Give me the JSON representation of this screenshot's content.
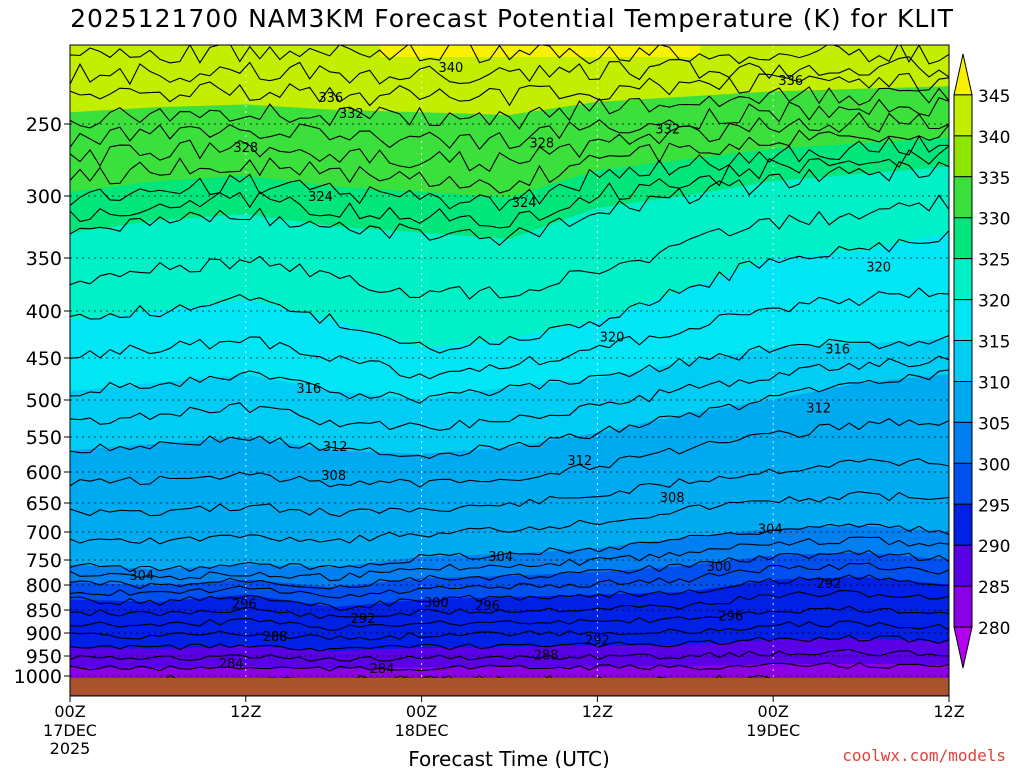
{
  "title": "2025121700 NAM3KM Forecast Potential Temperature (K) for KLIT",
  "credit": "coolwx.com/models",
  "chart_data": {
    "type": "contour",
    "title": "2025121700 NAM3KM Forecast Potential Temperature (K) for KLIT",
    "xlabel": "Forecast Time (UTC)",
    "ylabel": "",
    "x_ticks": [
      {
        "hour": 0,
        "label": "00Z",
        "sub1": "17DEC",
        "sub2": "2025"
      },
      {
        "hour": 12,
        "label": "12Z",
        "sub1": "",
        "sub2": ""
      },
      {
        "hour": 24,
        "label": "00Z",
        "sub1": "18DEC",
        "sub2": ""
      },
      {
        "hour": 36,
        "label": "12Z",
        "sub1": "",
        "sub2": ""
      },
      {
        "hour": 48,
        "label": "00Z",
        "sub1": "19DEC",
        "sub2": ""
      },
      {
        "hour": 60,
        "label": "12Z",
        "sub1": "",
        "sub2": ""
      }
    ],
    "x_range_hours": [
      0,
      60
    ],
    "y_axis_pressure_hpa": [
      250,
      300,
      350,
      400,
      450,
      500,
      550,
      600,
      650,
      700,
      750,
      800,
      850,
      900,
      950,
      1000
    ],
    "y_range_hpa": [
      200,
      1018
    ],
    "colorbar_levels": [
      345,
      340,
      335,
      330,
      325,
      320,
      315,
      310,
      305,
      300,
      295,
      290,
      285,
      280
    ],
    "colorbar_colors": [
      "#f8f200",
      "#c4ee00",
      "#8ee600",
      "#3ce03c",
      "#00e67a",
      "#00f0c8",
      "#00e6f4",
      "#00ccf4",
      "#00aaf0",
      "#0080f0",
      "#0050f0",
      "#0020e6",
      "#5a00e6",
      "#8c00e6",
      "#b400f0"
    ],
    "grid": true,
    "isotherm_levels_k": [
      284,
      286,
      288,
      290,
      292,
      294,
      296,
      298,
      300,
      302,
      304,
      306,
      308,
      310,
      312,
      314,
      316,
      318,
      320,
      322,
      324,
      326,
      328,
      330,
      332,
      334,
      336,
      338,
      340,
      342
    ],
    "isotherm_pressure_hpa_by_time": {
      "hours": [
        0,
        6,
        12,
        18,
        24,
        30,
        36,
        42,
        48,
        54,
        60
      ],
      "k296": [
        830,
        835,
        820,
        845,
        830,
        825,
        820,
        815,
        790,
        785,
        800
      ],
      "k304": [
        760,
        770,
        760,
        765,
        745,
        740,
        730,
        710,
        695,
        690,
        700
      ],
      "k312": [
        570,
        560,
        550,
        570,
        575,
        565,
        545,
        520,
        500,
        480,
        470
      ],
      "k316": [
        490,
        480,
        470,
        490,
        500,
        485,
        475,
        455,
        440,
        435,
        430
      ],
      "k320": [
        410,
        400,
        390,
        410,
        440,
        430,
        410,
        380,
        350,
        345,
        330
      ],
      "k324": [
        330,
        320,
        315,
        325,
        330,
        335,
        310,
        300,
        290,
        285,
        280
      ]
    },
    "contour_labels": [
      {
        "v": "340",
        "hour": 26.0,
        "p": 214
      },
      {
        "v": "336",
        "hour": 17.8,
        "p": 233
      },
      {
        "v": "336",
        "hour": 49.2,
        "p": 222
      },
      {
        "v": "332",
        "hour": 19.2,
        "p": 243
      },
      {
        "v": "332",
        "hour": 40.8,
        "p": 253
      },
      {
        "v": "328",
        "hour": 12.0,
        "p": 266
      },
      {
        "v": "328",
        "hour": 32.2,
        "p": 263
      },
      {
        "v": "324",
        "hour": 17.1,
        "p": 300
      },
      {
        "v": "324",
        "hour": 31.0,
        "p": 305
      },
      {
        "v": "320",
        "hour": 55.2,
        "p": 358
      },
      {
        "v": "320",
        "hour": 37.0,
        "p": 427
      },
      {
        "v": "316",
        "hour": 16.3,
        "p": 486
      },
      {
        "v": "316",
        "hour": 52.4,
        "p": 440
      },
      {
        "v": "312",
        "hour": 18.1,
        "p": 563
      },
      {
        "v": "312",
        "hour": 34.8,
        "p": 583
      },
      {
        "v": "312",
        "hour": 51.1,
        "p": 510
      },
      {
        "v": "308",
        "hour": 18.0,
        "p": 605
      },
      {
        "v": "308",
        "hour": 41.1,
        "p": 640
      },
      {
        "v": "304",
        "hour": 4.9,
        "p": 780
      },
      {
        "v": "304",
        "hour": 29.4,
        "p": 743
      },
      {
        "v": "304",
        "hour": 47.8,
        "p": 694
      },
      {
        "v": "300",
        "hour": 44.3,
        "p": 762
      },
      {
        "v": "300",
        "hour": 25.0,
        "p": 834
      },
      {
        "v": "296",
        "hour": 11.9,
        "p": 837
      },
      {
        "v": "296",
        "hour": 28.5,
        "p": 840
      },
      {
        "v": "296",
        "hour": 45.1,
        "p": 862
      },
      {
        "v": "292",
        "hour": 20.0,
        "p": 867
      },
      {
        "v": "292",
        "hour": 36.0,
        "p": 914
      },
      {
        "v": "292",
        "hour": 51.8,
        "p": 796
      },
      {
        "v": "288",
        "hour": 14.0,
        "p": 906
      },
      {
        "v": "288",
        "hour": 32.5,
        "p": 947
      },
      {
        "v": "284",
        "hour": 11.0,
        "p": 968
      },
      {
        "v": "284",
        "hour": 21.3,
        "p": 980
      }
    ]
  }
}
